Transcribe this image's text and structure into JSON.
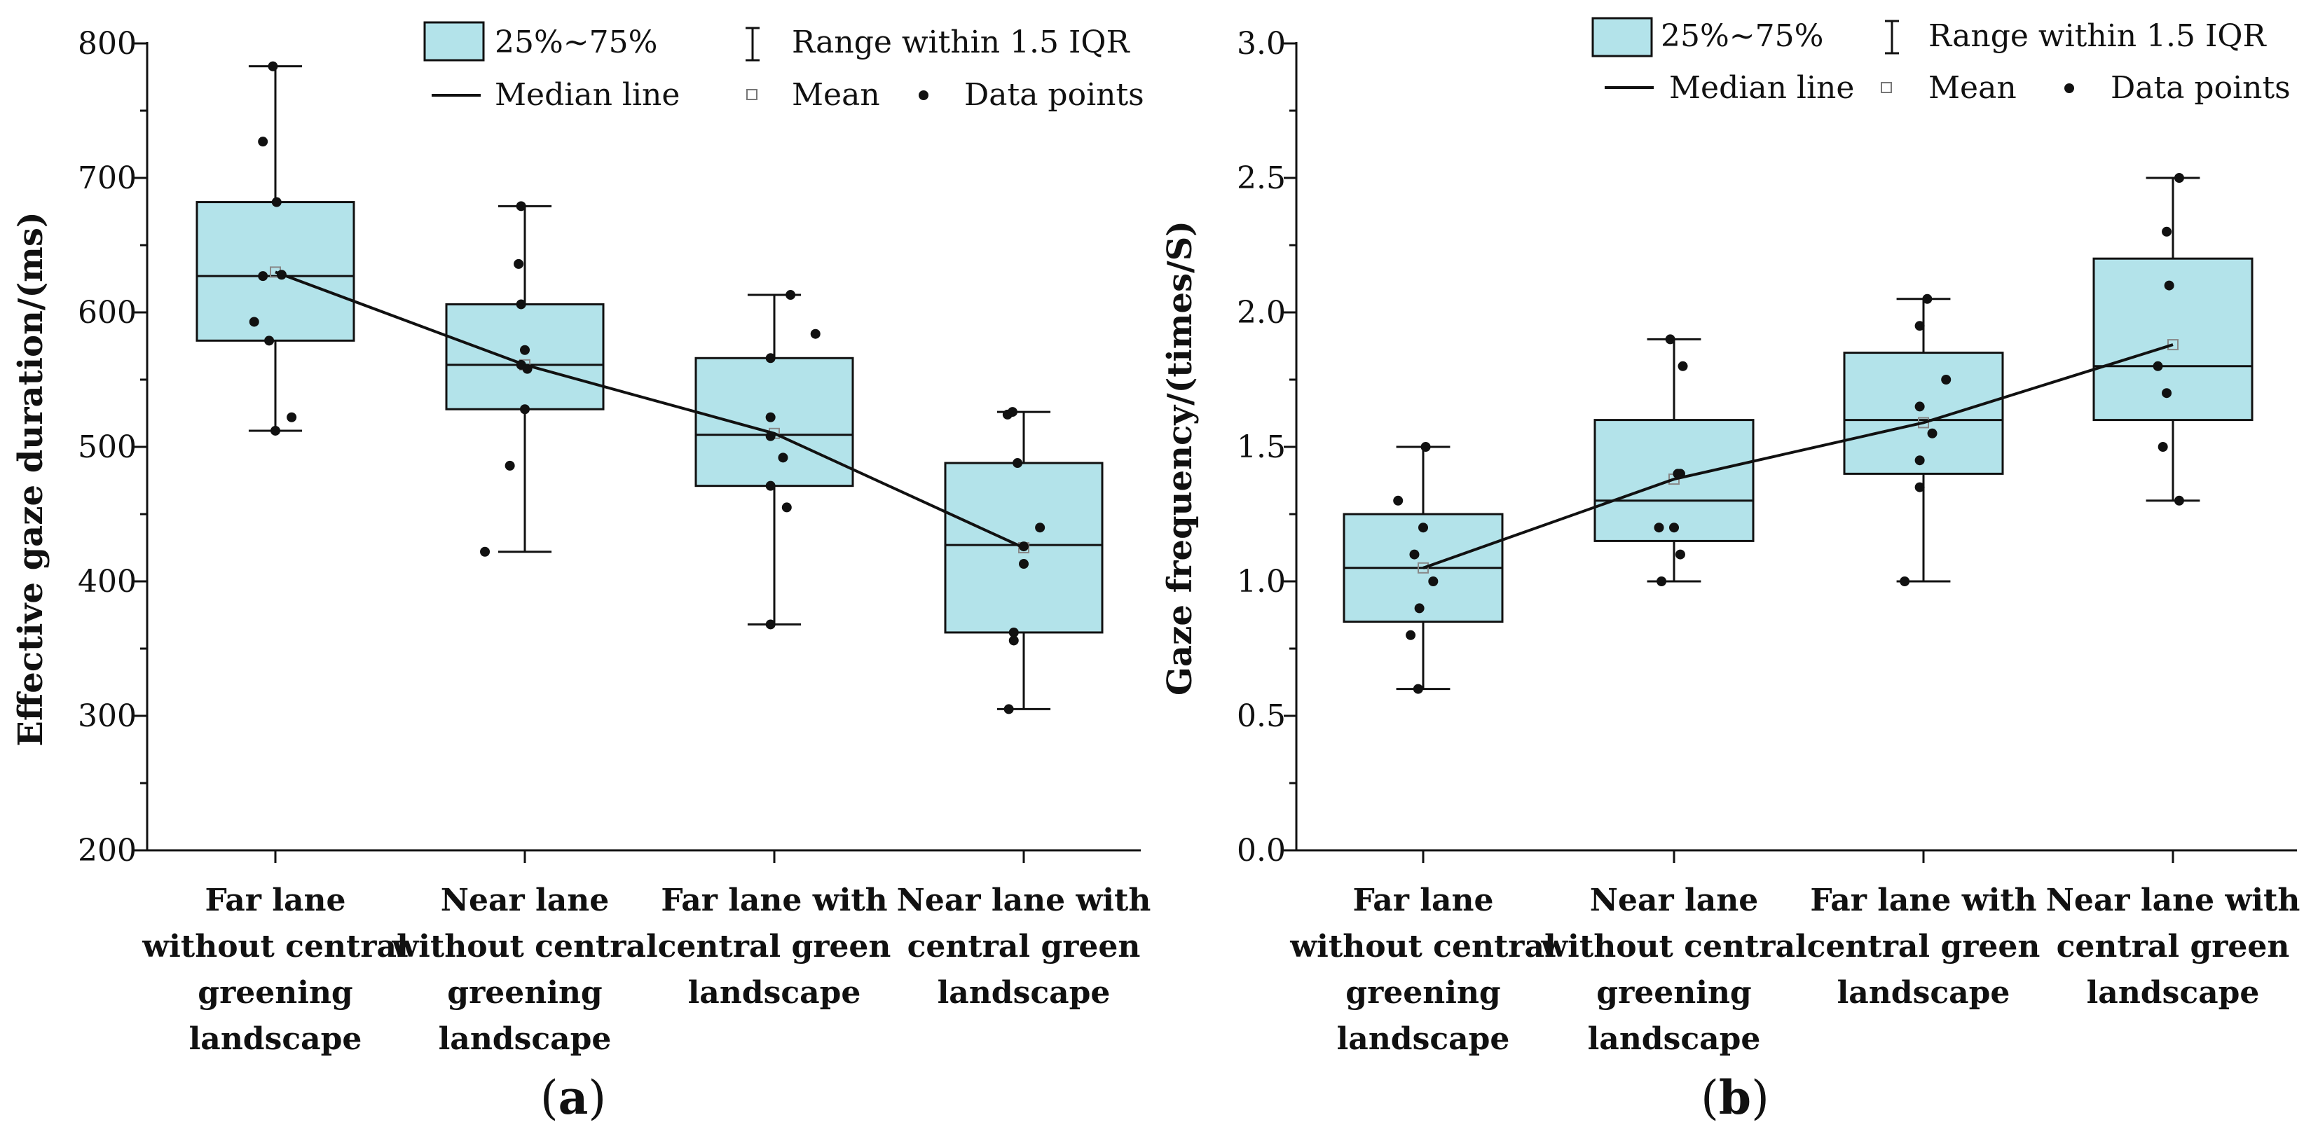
{
  "figure": {
    "panel_labels": [
      "a",
      "b"
    ]
  },
  "colors": {
    "box_fill": "#b3e3ea",
    "stroke": "#111111"
  },
  "legend": {
    "box": "25%~75%",
    "range": "Range within 1.5 IQR",
    "median": "Median line",
    "mean": "Mean",
    "points": "Data points"
  },
  "chart_data": [
    {
      "type": "box",
      "panel": "a",
      "ylabel": "Effective gaze duration/(ms)",
      "ylim": [
        200,
        800
      ],
      "yticks": [
        200,
        300,
        400,
        500,
        600,
        700,
        800
      ],
      "tick_labels": [
        "200",
        "300",
        "400",
        "500",
        "600",
        "700",
        "800"
      ],
      "categories": [
        [
          "Far lane",
          "without central",
          "greening",
          "landscape"
        ],
        [
          "Near lane",
          "without central",
          "greening",
          "landscape"
        ],
        [
          "Far lane with",
          "central green",
          "landscape"
        ],
        [
          "Near lane with",
          "central green",
          "landscape"
        ]
      ],
      "boxes": [
        {
          "q1": 579,
          "median": 627,
          "q3": 682,
          "whisker_low": 512,
          "whisker_high": 783,
          "mean": 630
        },
        {
          "q1": 528,
          "median": 561,
          "q3": 606,
          "whisker_low": 422,
          "whisker_high": 679,
          "mean": 561
        },
        {
          "q1": 471,
          "median": 509,
          "q3": 566,
          "whisker_low": 368,
          "whisker_high": 613,
          "mean": 510
        },
        {
          "q1": 362,
          "median": 427,
          "q3": 488,
          "whisker_low": 305,
          "whisker_high": 526,
          "mean": 425
        }
      ],
      "points": [
        [
          [
            -0.02,
            783
          ],
          [
            -0.1,
            727
          ],
          [
            0.01,
            682
          ],
          [
            -0.1,
            627
          ],
          [
            0.05,
            628
          ],
          [
            -0.17,
            593
          ],
          [
            -0.05,
            579
          ],
          [
            0.13,
            522
          ],
          [
            0.0,
            512
          ]
        ],
        [
          [
            -0.03,
            679
          ],
          [
            -0.05,
            636
          ],
          [
            -0.03,
            606
          ],
          [
            0.0,
            572
          ],
          [
            -0.03,
            561
          ],
          [
            0.02,
            558
          ],
          [
            0.0,
            528
          ],
          [
            -0.12,
            486
          ],
          [
            -0.32,
            422
          ]
        ],
        [
          [
            0.13,
            613
          ],
          [
            0.33,
            584
          ],
          [
            -0.03,
            566
          ],
          [
            -0.03,
            522
          ],
          [
            -0.03,
            508
          ],
          [
            0.07,
            492
          ],
          [
            -0.03,
            471
          ],
          [
            0.1,
            455
          ],
          [
            -0.03,
            368
          ]
        ],
        [
          [
            -0.13,
            524
          ],
          [
            -0.09,
            526
          ],
          [
            -0.05,
            488
          ],
          [
            0.13,
            440
          ],
          [
            0.0,
            426
          ],
          [
            0.0,
            413
          ],
          [
            -0.08,
            362
          ],
          [
            -0.08,
            356
          ],
          [
            -0.12,
            305
          ]
        ]
      ],
      "mean_line": [
        630,
        561,
        510,
        425
      ]
    },
    {
      "type": "box",
      "panel": "b",
      "ylabel": "Gaze frequency/(times/S)",
      "ylim": [
        0,
        3
      ],
      "yticks": [
        0,
        0.5,
        1.0,
        1.5,
        2.0,
        2.5,
        3.0
      ],
      "tick_labels": [
        "0.0",
        "0.5",
        "1.0",
        "1.5",
        "2.0",
        "2.5",
        "3.0"
      ],
      "categories": [
        [
          "Far lane",
          "without central",
          "greening",
          "landscape"
        ],
        [
          "Near lane",
          "without central",
          "greening",
          "landscape"
        ],
        [
          "Far lane with",
          "central green",
          "landscape"
        ],
        [
          "Near lane with",
          "central green",
          "landscape"
        ]
      ],
      "boxes": [
        {
          "q1": 0.85,
          "median": 1.05,
          "q3": 1.25,
          "whisker_low": 0.6,
          "whisker_high": 1.5,
          "mean": 1.05
        },
        {
          "q1": 1.15,
          "median": 1.3,
          "q3": 1.6,
          "whisker_low": 1.0,
          "whisker_high": 1.9,
          "mean": 1.38
        },
        {
          "q1": 1.4,
          "median": 1.6,
          "q3": 1.85,
          "whisker_low": 1.0,
          "whisker_high": 2.05,
          "mean": 1.59
        },
        {
          "q1": 1.6,
          "median": 1.8,
          "q3": 2.2,
          "whisker_low": 1.3,
          "whisker_high": 2.5,
          "mean": 1.88
        }
      ],
      "points": [
        [
          [
            0.02,
            1.5
          ],
          [
            -0.2,
            1.3
          ],
          [
            0.0,
            1.2
          ],
          [
            -0.07,
            1.1
          ],
          [
            0.08,
            1.0
          ],
          [
            -0.03,
            0.9
          ],
          [
            -0.1,
            0.8
          ],
          [
            -0.04,
            0.6
          ]
        ],
        [
          [
            -0.03,
            1.9
          ],
          [
            0.07,
            1.8
          ],
          [
            0.03,
            1.4
          ],
          [
            0.05,
            1.4
          ],
          [
            -0.12,
            1.2
          ],
          [
            0.0,
            1.2
          ],
          [
            0.05,
            1.1
          ],
          [
            -0.1,
            1.0
          ]
        ],
        [
          [
            0.03,
            2.05
          ],
          [
            -0.03,
            1.95
          ],
          [
            0.18,
            1.75
          ],
          [
            -0.03,
            1.65
          ],
          [
            0.07,
            1.55
          ],
          [
            -0.03,
            1.45
          ],
          [
            -0.03,
            1.35
          ],
          [
            -0.15,
            1.0
          ]
        ],
        [
          [
            0.05,
            2.5
          ],
          [
            -0.05,
            2.3
          ],
          [
            -0.03,
            2.1
          ],
          [
            -0.12,
            1.8
          ],
          [
            -0.05,
            1.7
          ],
          [
            -0.08,
            1.5
          ],
          [
            0.05,
            1.3
          ]
        ]
      ],
      "mean_line": [
        1.05,
        1.38,
        1.59,
        1.88
      ]
    }
  ]
}
